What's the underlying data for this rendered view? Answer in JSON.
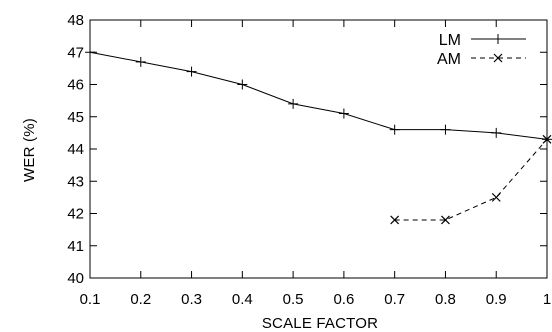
{
  "chart_data": {
    "type": "line",
    "xlabel": "SCALE FACTOR",
    "ylabel": "WER (%)",
    "xlim": [
      0.1,
      1.0
    ],
    "ylim": [
      40,
      48
    ],
    "xticks": [
      0.1,
      0.2,
      0.3,
      0.4,
      0.5,
      0.6,
      0.7,
      0.8,
      0.9,
      1.0
    ],
    "xtick_labels": [
      "0.1",
      "0.2",
      "0.3",
      "0.4",
      "0.5",
      "0.6",
      "0.7",
      "0.8",
      "0.9",
      "1"
    ],
    "yticks": [
      40,
      41,
      42,
      43,
      44,
      45,
      46,
      47,
      48
    ],
    "ytick_labels": [
      "40",
      "41",
      "42",
      "43",
      "44",
      "45",
      "46",
      "47",
      "48"
    ],
    "legend": {
      "placement": "top-right"
    },
    "grid": false,
    "series": [
      {
        "name": "LM",
        "line_style": "solid",
        "marker": "plus",
        "color": "#000000",
        "x": [
          0.1,
          0.2,
          0.3,
          0.4,
          0.5,
          0.6,
          0.7,
          0.8,
          0.9,
          1.0
        ],
        "y": [
          47.0,
          46.7,
          46.4,
          46.0,
          45.4,
          45.1,
          44.6,
          44.6,
          44.5,
          44.3
        ]
      },
      {
        "name": "AM",
        "line_style": "dashed",
        "marker": "cross",
        "color": "#000000",
        "x": [
          0.7,
          0.8,
          0.9,
          1.0
        ],
        "y": [
          41.8,
          41.8,
          42.5,
          44.3
        ]
      }
    ]
  }
}
